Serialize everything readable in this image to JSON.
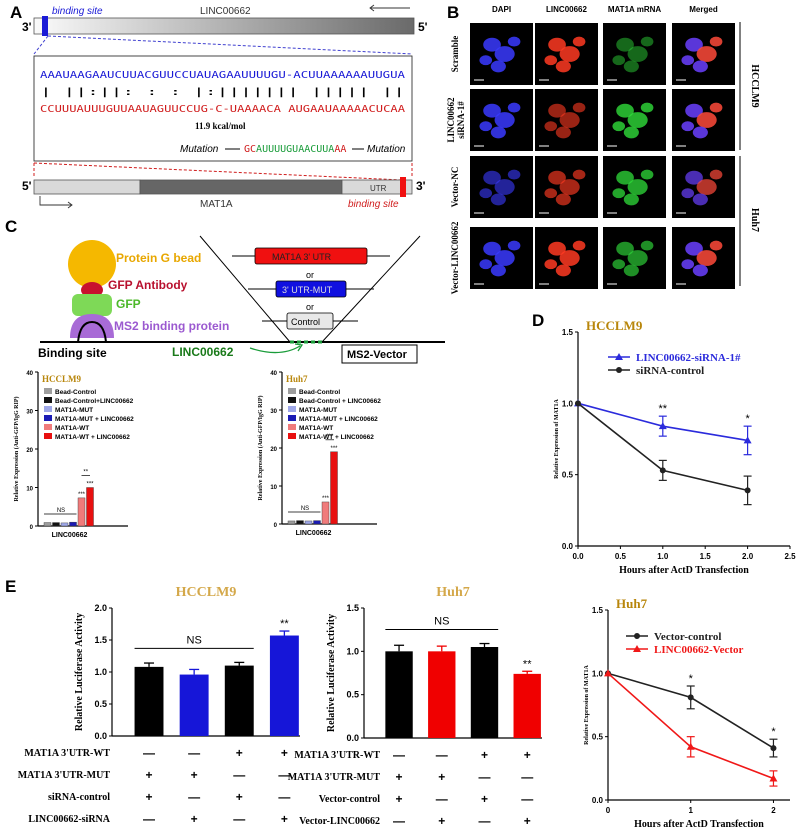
{
  "panel_letters": [
    "A",
    "B",
    "C",
    "D",
    "E"
  ],
  "panel_a": {
    "gene_top": "LINC00662",
    "strand_top_left": "3'",
    "strand_top_right": "5'",
    "binding_label_top": "binding site",
    "seq_top": "AAAUAAGAAUCUUACGUUCCUAUAGAAUUUUGU-ACUUAAAAAAUUGUA",
    "pairs": "| ||:||:   :    :  |:||||||| |||||      ||",
    "seq_bottom": "CCUUUAUUUGUUAAUAGUUCCUG-C-UAAAACA AUGAAUAAAAACUCAA",
    "energy": "11.9 kcal/mol",
    "mutation_label": "Mutation",
    "mutation_seq_parts": [
      {
        "t": "GC",
        "c": "#d01c1c"
      },
      {
        "t": "AUUUUGU",
        "c": "#1a9c3a"
      },
      {
        "t": "AACUUA",
        "c": "#1a9c3a"
      },
      {
        "t": "AA",
        "c": "#d01c1c"
      }
    ],
    "mutation_seq": "GCAUUUUGUAACUUAAA",
    "gene_bottom": "MAT1A",
    "utr_label": "UTR",
    "binding_label_bottom": "binding site",
    "strand_bottom_left": "5'",
    "strand_bottom_right": "3'"
  },
  "panel_b": {
    "columns": [
      "DAPI",
      "LINC00662",
      "MAT1A mRNA",
      "Merged"
    ],
    "rows": [
      "Scramble",
      "LINC00662 siRNA-1#",
      "Vector-NC",
      "Vector-LINC00662"
    ],
    "cell_lines": [
      "HCCLM9",
      "Huh7"
    ]
  },
  "panel_c": {
    "protein_g": "Protein G bead",
    "gfp_antibody": "GFP Antibody",
    "gfp": "GFP",
    "ms2_protein": "MS2 binding protein",
    "binding_site": "Binding site",
    "linc": "LINC00662",
    "vector": "MS2-Vector",
    "constructs": [
      "MAT1A 3' UTR",
      "3' UTR-MUT",
      "Control"
    ],
    "or": "or"
  },
  "chart_data": [
    {
      "id": "C-HCCLM9",
      "type": "bar",
      "title": "HCCLM9",
      "ylabel": "Relative Expression (Anti-GFP/IgG RIP)",
      "xlabel": "LINC00662",
      "ylim": [
        0,
        40
      ],
      "yticks": [
        0,
        10,
        20,
        30,
        40
      ],
      "series": [
        {
          "name": "Bead-Control",
          "value": 0.9,
          "color": "#9e9e9e"
        },
        {
          "name": "Bead-Control+LINC00662",
          "value": 0.9,
          "color": "#111111"
        },
        {
          "name": "MAT1A-MUT",
          "value": 0.8,
          "color": "#9fa8e8"
        },
        {
          "name": "MAT1A-MUT + LINC00662",
          "value": 1.0,
          "color": "#1a1ab4"
        },
        {
          "name": "MAT1A-WT",
          "value": 7.3,
          "color": "#f07b7b"
        },
        {
          "name": "MAT1A-WT + LINC00662",
          "value": 10.0,
          "color": "#e81010"
        }
      ],
      "annotations": [
        "NS",
        "***",
        "***",
        "**"
      ]
    },
    {
      "id": "C-Huh7",
      "type": "bar",
      "title": "Huh7",
      "ylabel": "Relative Expression (Anti-GFP/IgG RIP)",
      "xlabel": "LINC00662",
      "ylim": [
        0,
        40
      ],
      "yticks": [
        0,
        10,
        20,
        30,
        40
      ],
      "series": [
        {
          "name": "Bead-Control",
          "value": 0.8,
          "color": "#9e9e9e"
        },
        {
          "name": "Bead-Control + LINC00662",
          "value": 0.9,
          "color": "#111111"
        },
        {
          "name": "MAT1A-MUT",
          "value": 0.8,
          "color": "#9fa8e8"
        },
        {
          "name": "MAT1A-MUT + LINC00662",
          "value": 0.9,
          "color": "#1a1ab4"
        },
        {
          "name": "MAT1A-WT",
          "value": 5.8,
          "color": "#f07b7b"
        },
        {
          "name": "MAT1A-WT + LINC00662",
          "value": 19.0,
          "color": "#e81010"
        }
      ],
      "annotations": [
        "NS",
        "***",
        "***",
        "***"
      ]
    },
    {
      "id": "D-HCCLM9",
      "type": "line",
      "title": "HCCLM9",
      "ylabel": "Relative Expression of MAT1A",
      "xlabel": "Hours after ActD Transfection",
      "xlim": [
        0,
        2.5
      ],
      "ylim": [
        0,
        1.5
      ],
      "xticks": [
        0.0,
        0.5,
        1.0,
        1.5,
        2.0,
        2.5
      ],
      "yticks": [
        0.0,
        0.5,
        1.0,
        1.5
      ],
      "x": [
        0,
        1,
        2
      ],
      "series": [
        {
          "name": "LINC00662-siRNA-1#",
          "values": [
            1.0,
            0.84,
            0.74
          ],
          "err": [
            0,
            0.07,
            0.1
          ],
          "color": "#2b2bdc",
          "marker": "triangle"
        },
        {
          "name": "siRNA-control",
          "values": [
            1.0,
            0.53,
            0.39
          ],
          "err": [
            0,
            0.07,
            0.1
          ],
          "color": "#222222",
          "marker": "circle"
        }
      ],
      "annotations": [
        {
          "x": 1,
          "text": "**"
        },
        {
          "x": 2,
          "text": "*"
        }
      ]
    },
    {
      "id": "E-HCCLM9",
      "type": "bar",
      "title": "HCCLM9",
      "ylabel": "Relative Luciferase Activity",
      "ylim": [
        0,
        2.0
      ],
      "yticks": [
        0.0,
        0.5,
        1.0,
        1.5,
        2.0
      ],
      "values": [
        1.08,
        0.96,
        1.1,
        1.57
      ],
      "err": [
        0.06,
        0.08,
        0.05,
        0.07
      ],
      "colors": [
        "#000000",
        "#1616d8",
        "#000000",
        "#1616d8"
      ],
      "annotations": [
        "NS",
        "**"
      ],
      "row_labels": [
        "MAT1A 3'UTR-WT",
        "MAT1A 3'UTR-MUT",
        "siRNA-control",
        "LINC00662-siRNA"
      ],
      "row_signs": [
        [
          "—",
          "—",
          "+",
          "+"
        ],
        [
          "+",
          "+",
          "—",
          "—"
        ],
        [
          "+",
          "—",
          "+",
          "—"
        ],
        [
          "—",
          "+",
          "—",
          "+"
        ]
      ]
    },
    {
      "id": "E-Huh7",
      "type": "bar",
      "title": "Huh7",
      "ylabel": "Relative Luciferase Activity",
      "ylim": [
        0,
        1.5
      ],
      "yticks": [
        0.0,
        0.5,
        1.0,
        1.5
      ],
      "values": [
        1.0,
        1.0,
        1.05,
        0.74
      ],
      "err": [
        0.07,
        0.06,
        0.04,
        0.03
      ],
      "colors": [
        "#000000",
        "#f00000",
        "#000000",
        "#f00000"
      ],
      "annotations": [
        "NS",
        "**"
      ],
      "row_labels": [
        "MAT1A 3'UTR-WT",
        "MAT1A 3'UTR-MUT",
        "Vector-control",
        "Vector-LINC00662"
      ],
      "row_signs": [
        [
          "—",
          "—",
          "+",
          "+"
        ],
        [
          "+",
          "+",
          "—",
          "—"
        ],
        [
          "+",
          "—",
          "+",
          "—"
        ],
        [
          "—",
          "+",
          "—",
          "+"
        ]
      ]
    },
    {
      "id": "E-Huh7-line",
      "type": "line",
      "title": "Huh7",
      "ylabel": "Relative Expression of MAT1A",
      "xlabel": "Hours after ActD Transfection",
      "xlim": [
        0,
        2.2
      ],
      "ylim": [
        0,
        1.5
      ],
      "xticks": [
        0,
        1,
        2
      ],
      "yticks": [
        0.0,
        0.5,
        1.0,
        1.5
      ],
      "x": [
        0,
        1,
        2
      ],
      "series": [
        {
          "name": "Vector-control",
          "values": [
            1.0,
            0.81,
            0.41
          ],
          "err": [
            0,
            0.09,
            0.07
          ],
          "color": "#222222",
          "marker": "circle"
        },
        {
          "name": "LINC00662-Vector",
          "values": [
            1.0,
            0.42,
            0.17
          ],
          "err": [
            0,
            0.08,
            0.06
          ],
          "color": "#f01818",
          "marker": "triangle"
        }
      ],
      "annotations": [
        {
          "x": 1,
          "text": "*"
        },
        {
          "x": 2,
          "text": "*"
        }
      ]
    }
  ]
}
